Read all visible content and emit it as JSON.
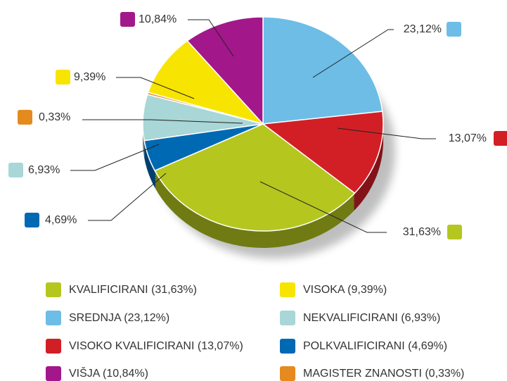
{
  "chart_data": {
    "type": "pie",
    "categories": [
      "SREDNJA (23,12%)",
      "VISOKO KVALIFICIRANI (13,07%)",
      "KVALIFICIRANI (31,63%)",
      "POLKVALIFICIRANI (4,69%)",
      "NEKVALIFICIRANI (6,93%)",
      "MAGISTER ZNANOSTI (0,33%)",
      "VISOKA (9,39%)",
      "VIŠJA (10,84%)"
    ],
    "values": [
      23.12,
      13.07,
      31.63,
      4.69,
      6.93,
      0.33,
      9.39,
      10.84
    ],
    "value_labels": [
      "23,12%",
      "13,07%",
      "31,63%",
      "4,69%",
      "6,93%",
      "0,33%",
      "9,39%",
      "10,84%"
    ],
    "colors": [
      "#6dbde6",
      "#d21f26",
      "#b5c61f",
      "#0069b4",
      "#a9d6d6",
      "#e58a1e",
      "#f7e400",
      "#a2178a"
    ],
    "legend": true
  }
}
